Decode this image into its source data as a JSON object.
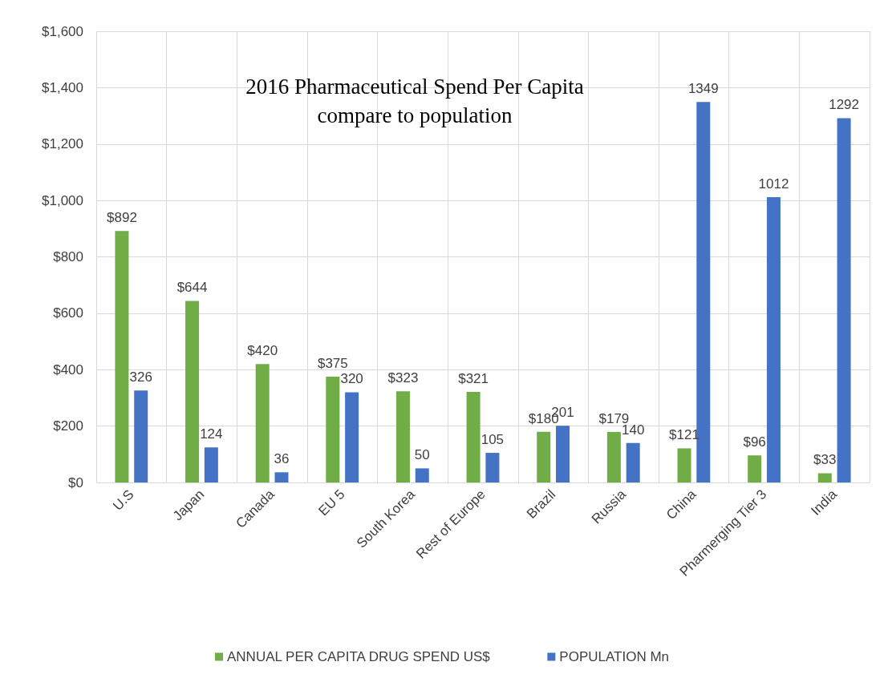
{
  "chart_data": {
    "type": "bar",
    "title": "2016 Pharmaceutical Spend Per Capita\ncompare to population",
    "categories": [
      "U.S",
      "Japan",
      "Canada",
      "EU 5",
      "South Korea",
      "Rest of Europe",
      "Brazil",
      "Russia",
      "China",
      "Pharmerging Tier 3",
      "India"
    ],
    "series": [
      {
        "name": "ANNUAL PER CAPITA DRUG SPEND US$",
        "color": "#70ad47",
        "values": [
          892,
          644,
          420,
          375,
          323,
          321,
          180,
          179,
          121,
          96,
          33
        ],
        "value_labels": [
          "$892",
          "$644",
          "$420",
          "$375",
          "$323",
          "$321",
          "$180",
          "$179",
          "$121",
          "$96",
          "$33"
        ]
      },
      {
        "name": "POPULATION Mn",
        "color": "#4472c4",
        "values": [
          326,
          124,
          36,
          320,
          50,
          105,
          201,
          140,
          1349,
          1012,
          1292
        ],
        "value_labels": [
          "326",
          "124",
          "36",
          "320",
          "50",
          "105",
          "201",
          "140",
          "1349",
          "1012",
          "1292"
        ]
      }
    ],
    "ylim": [
      0,
      1600
    ],
    "yticks": [
      {
        "value": 0,
        "label": "$0"
      },
      {
        "value": 200,
        "label": "$200"
      },
      {
        "value": 400,
        "label": "$400"
      },
      {
        "value": 600,
        "label": "$600"
      },
      {
        "value": 800,
        "label": "$800"
      },
      {
        "value": 1000,
        "label": "$1,000"
      },
      {
        "value": 1200,
        "label": "$1,200"
      },
      {
        "value": 1400,
        "label": "$1,400"
      },
      {
        "value": 1600,
        "label": "$1,600"
      }
    ],
    "grid": true,
    "legend": "bottom"
  }
}
